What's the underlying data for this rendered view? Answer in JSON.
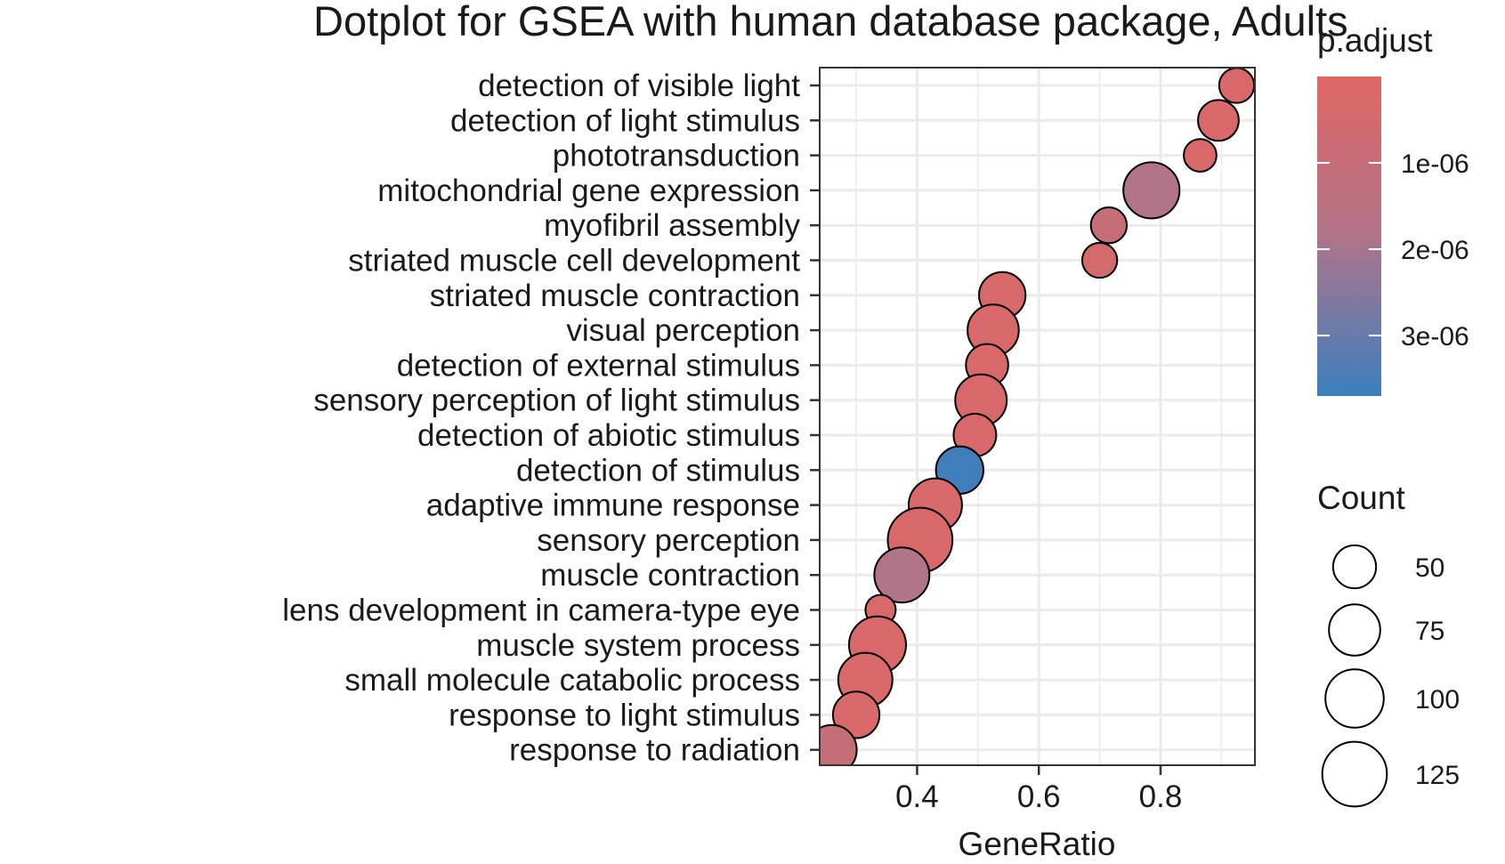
{
  "chart_data": {
    "type": "scatter",
    "title": "Dotplot for GSEA with human database package, Adults",
    "xlabel": "GeneRatio",
    "ylabel": "",
    "xlim": [
      0.24,
      0.955
    ],
    "x_ticks": [
      0.4,
      0.6,
      0.8
    ],
    "x_tick_labels": [
      "0.4",
      "0.6",
      "0.8"
    ],
    "grid": true,
    "categories": [
      "detection of visible light",
      "detection of light stimulus",
      "phototransduction",
      "mitochondrial gene expression",
      "myofibril assembly",
      "striated muscle cell development",
      "striated muscle contraction",
      "visual perception",
      "detection of external stimulus",
      "sensory perception of light stimulus",
      "detection of abiotic stimulus",
      "detection of stimulus",
      "adaptive immune response",
      "sensory perception",
      "muscle contraction",
      "lens development in camera-type eye",
      "muscle system process",
      "small molecule catabolic process",
      "response to light stimulus",
      "response to radiation"
    ],
    "points": [
      {
        "term": "detection of visible light",
        "gene_ratio": 0.925,
        "count": 30,
        "p_adjust": 3e-07
      },
      {
        "term": "detection of light stimulus",
        "gene_ratio": 0.895,
        "count": 44,
        "p_adjust": 3e-07
      },
      {
        "term": "phototransduction",
        "gene_ratio": 0.865,
        "count": 25,
        "p_adjust": 3e-07
      },
      {
        "term": "mitochondrial gene expression",
        "gene_ratio": 0.785,
        "count": 92,
        "p_adjust": 1.8e-06
      },
      {
        "term": "myofibril assembly",
        "gene_ratio": 0.715,
        "count": 32,
        "p_adjust": 1e-06
      },
      {
        "term": "striated muscle cell development",
        "gene_ratio": 0.7,
        "count": 30,
        "p_adjust": 5e-07
      },
      {
        "term": "striated muscle contraction",
        "gene_ratio": 0.54,
        "count": 60,
        "p_adjust": 3e-07
      },
      {
        "term": "visual perception",
        "gene_ratio": 0.525,
        "count": 75,
        "p_adjust": 3e-07
      },
      {
        "term": "detection of external stimulus",
        "gene_ratio": 0.515,
        "count": 48,
        "p_adjust": 3e-07
      },
      {
        "term": "sensory perception of light stimulus",
        "gene_ratio": 0.505,
        "count": 76,
        "p_adjust": 3e-07
      },
      {
        "term": "detection of abiotic stimulus",
        "gene_ratio": 0.495,
        "count": 49,
        "p_adjust": 3e-07
      },
      {
        "term": "detection of stimulus",
        "gene_ratio": 0.47,
        "count": 63,
        "p_adjust": 3.6e-06
      },
      {
        "term": "adaptive immune response",
        "gene_ratio": 0.43,
        "count": 82,
        "p_adjust": 3e-07
      },
      {
        "term": "sensory perception",
        "gene_ratio": 0.405,
        "count": 125,
        "p_adjust": 3e-07
      },
      {
        "term": "muscle contraction",
        "gene_ratio": 0.375,
        "count": 88,
        "p_adjust": 1.8e-06
      },
      {
        "term": "lens development in camera-type eye",
        "gene_ratio": 0.34,
        "count": 20,
        "p_adjust": 3e-07
      },
      {
        "term": "muscle system process",
        "gene_ratio": 0.335,
        "count": 95,
        "p_adjust": 3e-07
      },
      {
        "term": "small molecule catabolic process",
        "gene_ratio": 0.315,
        "count": 85,
        "p_adjust": 3e-07
      },
      {
        "term": "response to light stimulus",
        "gene_ratio": 0.3,
        "count": 60,
        "p_adjust": 3e-07
      },
      {
        "term": "response to radiation",
        "gene_ratio": 0.26,
        "count": 70,
        "p_adjust": 1e-06
      }
    ],
    "color_legend": {
      "title": "p.adjust",
      "ticks": [
        1e-06,
        2e-06,
        3e-06
      ],
      "tick_labels": [
        "1e-06",
        "2e-06",
        "3e-06"
      ],
      "range": [
        0,
        3.7e-06
      ],
      "low_color": "#E06663",
      "high_color": "#3A7FBE"
    },
    "size_legend": {
      "title": "Count",
      "values": [
        50,
        75,
        100,
        125
      ],
      "labels": [
        "50",
        "75",
        "100",
        "125"
      ]
    }
  }
}
